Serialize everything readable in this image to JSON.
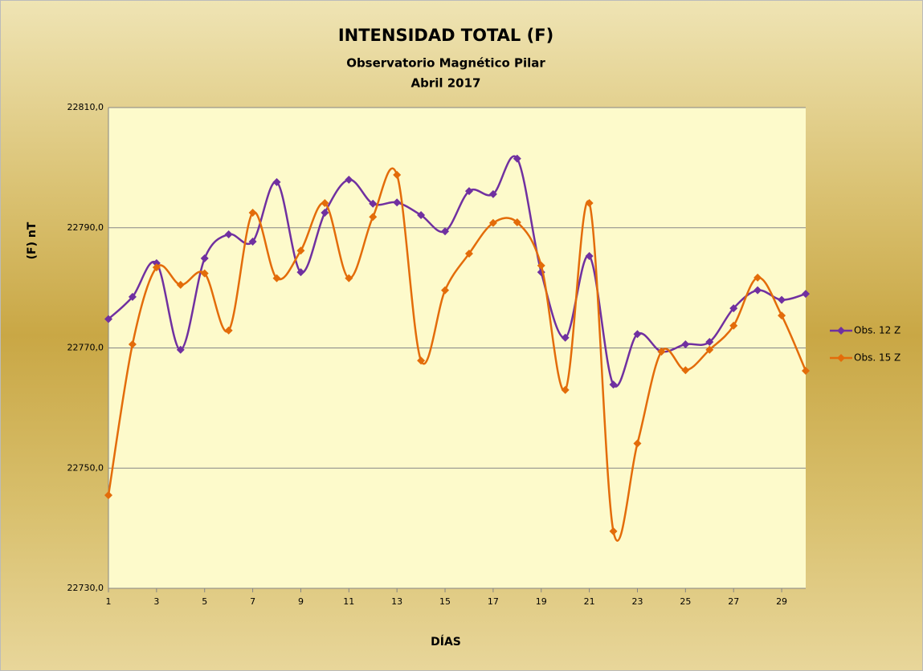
{
  "chart_data": {
    "type": "line",
    "title": "INTENSIDAD TOTAL (F)",
    "subtitle": [
      "Observatorio Magnético Pilar",
      "Abril 2017"
    ],
    "x_label": "DÍAS",
    "y_label": "(F) nT",
    "x": [
      1,
      2,
      3,
      4,
      5,
      6,
      7,
      8,
      9,
      10,
      11,
      12,
      13,
      14,
      15,
      16,
      17,
      18,
      19,
      20,
      21,
      22,
      23,
      24,
      25,
      26,
      27,
      28,
      29,
      30
    ],
    "series": [
      {
        "name": "Obs. 12 Z",
        "color": "#7030a0",
        "values": [
          22774.8,
          22778.5,
          22784.1,
          22769.7,
          22784.9,
          22788.9,
          22787.7,
          22797.6,
          22782.6,
          22792.5,
          22798.0,
          22794.0,
          22794.2,
          22792.1,
          22789.4,
          22796.1,
          22795.6,
          22801.5,
          22782.6,
          22771.7,
          22785.3,
          22763.9,
          22772.3,
          22769.4,
          22770.6,
          22771.0,
          22776.6,
          22779.6,
          22778.0,
          22779.0
        ]
      },
      {
        "name": "Obs. 15 Z",
        "color": "#e36c0a",
        "values": [
          22745.5,
          22770.6,
          22783.4,
          22780.5,
          22782.4,
          22772.9,
          22792.5,
          22781.6,
          22786.2,
          22794.1,
          22781.6,
          22791.8,
          22798.8,
          22767.9,
          22779.6,
          22785.7,
          22790.8,
          22790.9,
          22783.7,
          22763.0,
          22794.1,
          22739.5,
          22754.1,
          22769.4,
          22766.3,
          22769.7,
          22773.7,
          22781.7,
          22775.4,
          22766.2
        ]
      }
    ],
    "xlim": [
      1,
      30
    ],
    "xticks": [
      1,
      3,
      5,
      7,
      9,
      11,
      13,
      15,
      17,
      19,
      21,
      23,
      25,
      27,
      29
    ],
    "ylim": [
      22730,
      22810
    ],
    "yticks": [
      {
        "value": 22730,
        "label": "22730,0"
      },
      {
        "value": 22750,
        "label": "22750,0"
      },
      {
        "value": 22770,
        "label": "22770,0"
      },
      {
        "value": 22790,
        "label": "22790,0"
      },
      {
        "value": 22810,
        "label": "22810,0"
      }
    ],
    "grid": true,
    "legend": "right"
  }
}
